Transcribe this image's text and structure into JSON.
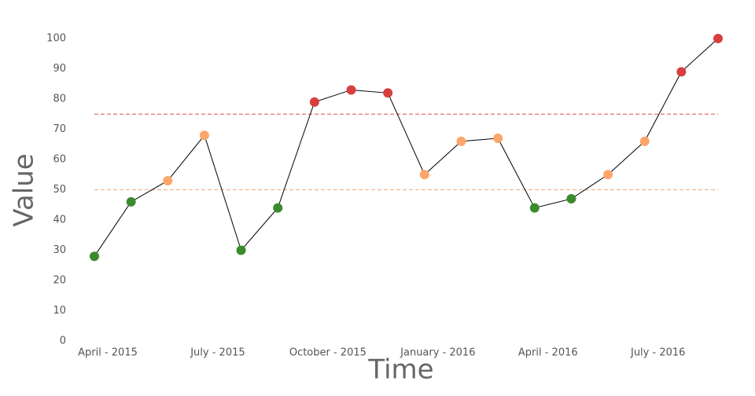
{
  "chart_data": {
    "type": "line",
    "x_title": "Time",
    "y_title": "Value",
    "categories": [
      "April - 2015",
      null,
      null,
      "July - 2015",
      null,
      null,
      "October - 2015",
      null,
      null,
      "January - 2016",
      null,
      null,
      "April - 2016",
      null,
      null,
      "July - 2016",
      null,
      null
    ],
    "values": [
      28,
      46,
      53,
      68,
      30,
      44,
      79,
      83,
      82,
      55,
      66,
      67,
      44,
      47,
      55,
      66,
      89,
      100
    ],
    "line_color": "#000000",
    "thresholds": [
      {
        "value": 50,
        "color": "#f0b58a"
      },
      {
        "value": 75,
        "color": "#e07070"
      }
    ],
    "point_colors": [
      "#3c8a2e",
      "#fca66b",
      "#d73f3f"
    ],
    "ylim": [
      0,
      100
    ],
    "yticks": [
      0,
      10,
      20,
      30,
      40,
      50,
      60,
      70,
      80,
      90,
      100
    ]
  }
}
